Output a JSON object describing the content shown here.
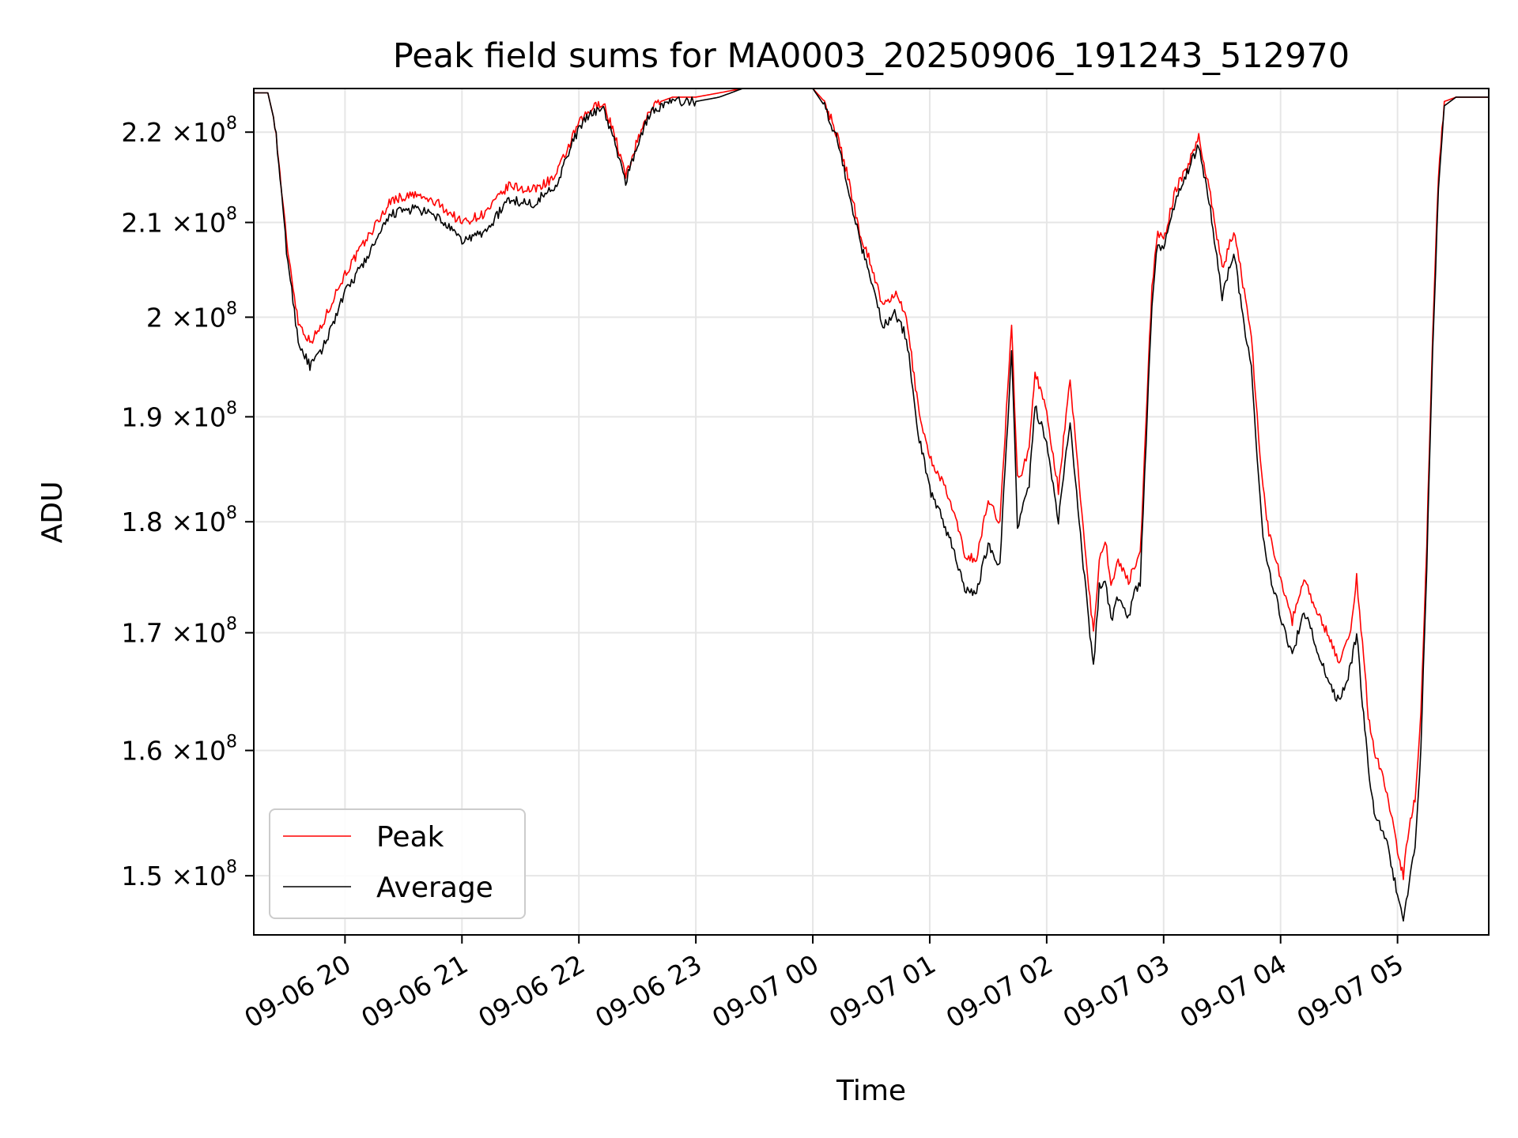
{
  "chart_data": {
    "type": "line",
    "title": "Peak field sums for MA0003_20250906_191243_512970",
    "xlabel": "Time",
    "ylabel": "ADU",
    "yscale": "log",
    "grid": true,
    "legend_position": "lower-left",
    "x_unit": "hours since 2025-09-06 20:00",
    "xlim": [
      -0.78,
      9.78
    ],
    "ylim": [
      145500000,
      225000000
    ],
    "x_tick_values": [
      0,
      1,
      2,
      3,
      4,
      5,
      6,
      7,
      8,
      9
    ],
    "x_tick_labels": [
      "09-06 20",
      "09-06 21",
      "09-06 22",
      "09-06 23",
      "09-07 00",
      "09-07 01",
      "09-07 02",
      "09-07 03",
      "09-07 04",
      "09-07 05"
    ],
    "y_tick_values": [
      150000000,
      160000000,
      170000000,
      180000000,
      190000000,
      200000000,
      210000000,
      220000000
    ],
    "y_tick_mantissa": [
      "1.5",
      "1.6",
      "1.7",
      "1.8",
      "1.9",
      "2",
      "2.1",
      "2.2"
    ],
    "y_tick_times": "×10",
    "y_tick_exponent": "8",
    "series": [
      {
        "name": "Peak",
        "color": "#ff0000",
        "x": [
          -0.78,
          -0.7,
          -0.66,
          -0.6,
          -0.5,
          -0.4,
          -0.3,
          -0.2,
          -0.1,
          0.0,
          0.2,
          0.4,
          0.6,
          0.8,
          1.0,
          1.2,
          1.4,
          1.6,
          1.8,
          2.0,
          2.1,
          2.2,
          2.3,
          2.4,
          2.5,
          2.6,
          2.7,
          2.8,
          3.0,
          3.2,
          3.4,
          3.6,
          3.8,
          4.0,
          4.1,
          4.2,
          4.3,
          4.4,
          4.5,
          4.6,
          4.7,
          4.8,
          4.9,
          5.0,
          5.1,
          5.2,
          5.3,
          5.4,
          5.5,
          5.6,
          5.7,
          5.75,
          5.8,
          5.85,
          5.9,
          6.0,
          6.1,
          6.2,
          6.3,
          6.35,
          6.4,
          6.45,
          6.5,
          6.55,
          6.6,
          6.7,
          6.75,
          6.8,
          6.85,
          6.9,
          6.95,
          7.0,
          7.1,
          7.2,
          7.3,
          7.4,
          7.5,
          7.6,
          7.7,
          7.75,
          7.8,
          7.85,
          7.9,
          8.0,
          8.1,
          8.2,
          8.3,
          8.4,
          8.5,
          8.6,
          8.65,
          8.7,
          8.75,
          8.8,
          8.9,
          9.0,
          9.05,
          9.1,
          9.15,
          9.2,
          9.25,
          9.3,
          9.35,
          9.4,
          9.5,
          9.6,
          9.7,
          9.78
        ],
        "values": [
          224500000,
          224500000,
          224500000,
          221000000,
          208000000,
          199500000,
          197500000,
          199000000,
          202000000,
          204500000,
          208500000,
          212500000,
          213000000,
          212000000,
          210000000,
          211000000,
          214000000,
          213500000,
          215000000,
          221000000,
          222500000,
          223500000,
          220000000,
          215000000,
          219000000,
          222500000,
          223500000,
          224000000,
          224000000,
          224500000,
          225000000,
          225000000,
          225000000,
          225000000,
          223500000,
          220000000,
          215000000,
          209000000,
          205500000,
          201000000,
          202500000,
          200000000,
          191000000,
          186000000,
          184000000,
          181000000,
          177000000,
          176500000,
          182000000,
          180000000,
          199000000,
          184000000,
          185000000,
          187000000,
          194500000,
          190500000,
          183000000,
          193500000,
          181000000,
          175000000,
          170000000,
          176500000,
          178500000,
          174000000,
          176500000,
          174500000,
          176000000,
          177000000,
          190000000,
          203000000,
          209000000,
          208000000,
          213500000,
          216000000,
          219500000,
          213000000,
          205000000,
          209000000,
          202000000,
          198000000,
          190000000,
          183000000,
          179000000,
          175000000,
          171000000,
          175000000,
          172000000,
          170000000,
          167500000,
          170000000,
          175000000,
          169000000,
          163000000,
          160000000,
          157000000,
          152000000,
          150000000,
          154000000,
          156000000,
          163000000,
          178000000,
          198000000,
          215000000,
          223500000,
          224000000,
          224000000,
          224000000,
          224000000
        ]
      },
      {
        "name": "Average",
        "color": "#000000",
        "x": [
          -0.78,
          -0.7,
          -0.66,
          -0.6,
          -0.5,
          -0.4,
          -0.3,
          -0.2,
          -0.1,
          0.0,
          0.2,
          0.4,
          0.6,
          0.8,
          1.0,
          1.2,
          1.4,
          1.6,
          1.8,
          2.0,
          2.1,
          2.2,
          2.3,
          2.4,
          2.5,
          2.6,
          2.7,
          2.8,
          3.0,
          3.2,
          3.4,
          3.6,
          3.8,
          4.0,
          4.1,
          4.2,
          4.3,
          4.4,
          4.5,
          4.6,
          4.7,
          4.8,
          4.9,
          5.0,
          5.1,
          5.2,
          5.3,
          5.4,
          5.5,
          5.6,
          5.7,
          5.75,
          5.8,
          5.85,
          5.9,
          6.0,
          6.1,
          6.2,
          6.3,
          6.35,
          6.4,
          6.45,
          6.5,
          6.55,
          6.6,
          6.7,
          6.75,
          6.8,
          6.85,
          6.9,
          6.95,
          7.0,
          7.1,
          7.2,
          7.3,
          7.4,
          7.5,
          7.6,
          7.7,
          7.75,
          7.8,
          7.85,
          7.9,
          8.0,
          8.1,
          8.2,
          8.3,
          8.4,
          8.5,
          8.6,
          8.65,
          8.7,
          8.75,
          8.8,
          8.9,
          9.0,
          9.05,
          9.1,
          9.15,
          9.2,
          9.25,
          9.3,
          9.35,
          9.4,
          9.5,
          9.6,
          9.7,
          9.78
        ],
        "values": [
          224500000,
          224500000,
          224500000,
          221000000,
          207000000,
          197500000,
          195000000,
          196500000,
          199500000,
          202500000,
          206500000,
          211000000,
          211500000,
          210500000,
          208000000,
          209000000,
          212500000,
          212000000,
          214000000,
          220500000,
          222000000,
          223000000,
          219000000,
          214500000,
          218500000,
          222000000,
          223000000,
          223500000,
          223500000,
          224000000,
          225000000,
          225000000,
          225000000,
          225000000,
          223000000,
          219500000,
          214000000,
          208000000,
          204000000,
          199000000,
          200500000,
          198000000,
          188500000,
          183000000,
          180500000,
          177500000,
          174000000,
          173500000,
          178000000,
          176000000,
          196500000,
          179500000,
          181500000,
          183500000,
          191000000,
          187500000,
          180000000,
          189500000,
          177500000,
          172000000,
          167000000,
          174000000,
          175000000,
          171000000,
          173000000,
          171500000,
          173500000,
          174500000,
          187500000,
          201500000,
          208000000,
          207000000,
          212500000,
          215500000,
          218500000,
          211500000,
          202000000,
          207000000,
          198000000,
          195000000,
          186000000,
          179000000,
          175500000,
          171500000,
          168000000,
          172000000,
          169000000,
          166000000,
          164000000,
          167000000,
          170000000,
          164000000,
          158500000,
          155000000,
          153000000,
          148500000,
          146500000,
          149500000,
          152500000,
          160000000,
          176000000,
          196000000,
          213500000,
          223000000,
          224000000,
          224000000,
          224000000,
          224000000
        ]
      }
    ]
  }
}
